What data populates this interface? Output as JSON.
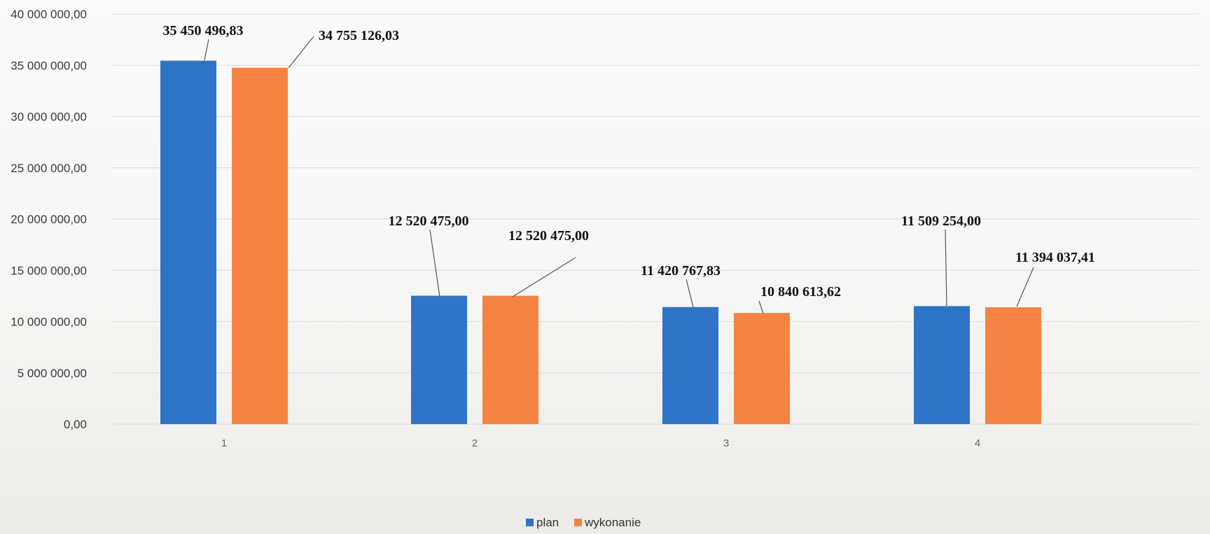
{
  "chart_data": {
    "type": "bar",
    "title": "",
    "xlabel": "",
    "ylabel": "",
    "categories": [
      "1",
      "2",
      "3",
      "4"
    ],
    "series": [
      {
        "name": "plan",
        "color": "#2e75c7",
        "values": [
          35450496.83,
          12520475.0,
          11420767.83,
          11509254.0
        ],
        "labels": [
          "35 450 496,83",
          "12 520 475,00",
          "11 420 767,83",
          "11 509 254,00"
        ]
      },
      {
        "name": "wykonanie",
        "color": "#f58443",
        "values": [
          34755126.03,
          12520475.0,
          10840613.62,
          11394037.41
        ],
        "labels": [
          "34 755 126,03",
          "12 520 475,00",
          "10 840 613,62",
          "11 394 037,41"
        ]
      }
    ],
    "ylim": [
      0,
      40000000
    ],
    "y_ticks": [
      0,
      5000000,
      10000000,
      15000000,
      20000000,
      25000000,
      30000000,
      35000000,
      40000000
    ],
    "y_tick_labels": [
      "0,00",
      "5 000 000,00",
      "10 000 000,00",
      "15 000 000,00",
      "20 000 000,00",
      "25 000 000,00",
      "30 000 000,00",
      "35 000 000,00",
      "40 000 000,00"
    ],
    "grid": true,
    "legend": "bottom-center"
  }
}
